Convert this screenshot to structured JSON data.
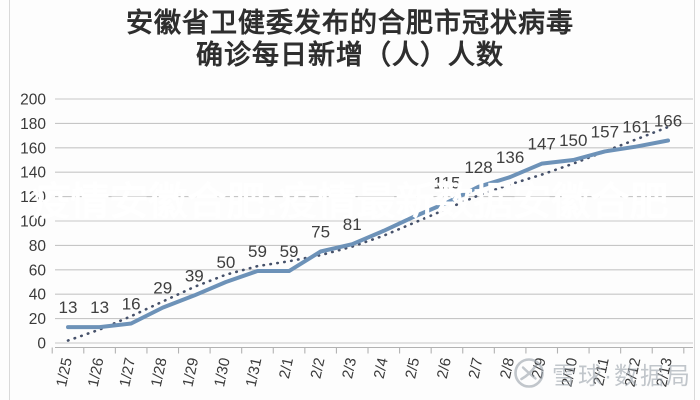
{
  "title": {
    "line1": "安徽省卫健委发布的合肥市冠状病毒",
    "line2": "确诊每日新增（人）人数"
  },
  "banner": {
    "text": "疫情安徽合肥:疫情最新数据安徽合肥",
    "bg_color": "rgba(167,194,152,0.85)",
    "text_color": "#ffffff"
  },
  "watermark": {
    "text": "雪球·数据局",
    "icon": "xueqiu-logo",
    "color": "#9aa2ab"
  },
  "chart_data": {
    "type": "line",
    "title": "安徽省卫健委发布的合肥市冠状病毒确诊每日新增（人）人数",
    "categories": [
      "1/25",
      "1/26",
      "1/27",
      "1/28",
      "1/29",
      "1/30",
      "1/31",
      "2/1",
      "2/2",
      "2/3",
      "2/4",
      "2/5",
      "2/6",
      "2/7",
      "2/8",
      "2/9",
      "2/10",
      "2/11",
      "2/12",
      "2/13"
    ],
    "series": [
      {
        "role": "daily-new-confirmed",
        "color": "#6d92b8",
        "values": [
          13,
          13,
          16,
          29,
          39,
          50,
          59,
          59,
          75,
          81,
          92,
          104,
          115,
          128,
          136,
          147,
          150,
          157,
          161,
          166
        ],
        "data_labels": [
          "13",
          "13",
          "16",
          "29",
          "39",
          "50",
          "59",
          "59",
          "75",
          "81",
          "",
          "",
          "115",
          "128",
          "136",
          "147",
          "150",
          "157",
          "161",
          "166"
        ]
      },
      {
        "role": "dotted-trendline",
        "color": "#46516a",
        "style": "dotted",
        "values": [
          2,
          11,
          22,
          34,
          46,
          56,
          63,
          67,
          72,
          79,
          88,
          99,
          110,
          121,
          130,
          138,
          147,
          157,
          167,
          177
        ]
      }
    ],
    "ylim": [
      0,
      200
    ],
    "ytick_step": 20,
    "yticks": [
      0,
      20,
      40,
      60,
      80,
      100,
      120,
      140,
      160,
      180,
      200
    ],
    "grid": true,
    "legend": "none",
    "label_color": "#3f3f3f",
    "grid_color": "#c6c6c6",
    "axis_color": "#b2b2b2"
  }
}
